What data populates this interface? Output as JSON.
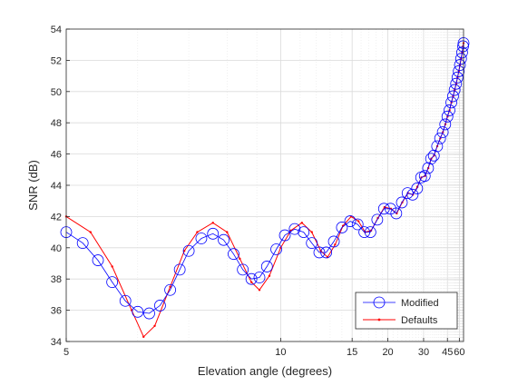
{
  "chart_data": {
    "type": "line",
    "xlabel": "Elevation angle (degrees)",
    "ylabel": "SNR (dB)",
    "x_scale": "reciprocal (tick labels are elevation angle in degrees)",
    "xlim": [
      5,
      68
    ],
    "ylim": [
      34,
      54
    ],
    "x_ticks": [
      5,
      10,
      15,
      20,
      30,
      45,
      60
    ],
    "x_tick_labels": [
      "5",
      "10",
      "15",
      "20",
      "30",
      "45",
      "60"
    ],
    "y_ticks": [
      34,
      36,
      38,
      40,
      42,
      44,
      46,
      48,
      50,
      52,
      54
    ],
    "y_tick_labels": [
      "34",
      "36",
      "38",
      "40",
      "42",
      "44",
      "46",
      "48",
      "50",
      "52",
      "54"
    ],
    "grid": true,
    "minor_grid": true,
    "legend_location": "bottom-right",
    "series": [
      {
        "name": "Modified",
        "color": "#0000ff",
        "marker": "circle",
        "points": [
          [
            5.0,
            41.0
          ],
          [
            5.2,
            40.3
          ],
          [
            5.4,
            39.2
          ],
          [
            5.6,
            37.8
          ],
          [
            5.8,
            36.6
          ],
          [
            6.0,
            35.9
          ],
          [
            6.2,
            35.8
          ],
          [
            6.4,
            36.3
          ],
          [
            6.6,
            37.3
          ],
          [
            6.8,
            38.6
          ],
          [
            7.0,
            39.8
          ],
          [
            7.3,
            40.6
          ],
          [
            7.6,
            40.9
          ],
          [
            7.9,
            40.5
          ],
          [
            8.2,
            39.6
          ],
          [
            8.5,
            38.6
          ],
          [
            8.8,
            38.0
          ],
          [
            9.1,
            38.1
          ],
          [
            9.4,
            38.8
          ],
          [
            9.8,
            39.9
          ],
          [
            10.2,
            40.8
          ],
          [
            10.7,
            41.2
          ],
          [
            11.2,
            41.0
          ],
          [
            11.7,
            40.3
          ],
          [
            12.2,
            39.7
          ],
          [
            12.7,
            39.7
          ],
          [
            13.3,
            40.4
          ],
          [
            14.0,
            41.3
          ],
          [
            14.8,
            41.7
          ],
          [
            15.6,
            41.5
          ],
          [
            16.4,
            41.0
          ],
          [
            17.2,
            41.0
          ],
          [
            18.2,
            41.8
          ],
          [
            19.3,
            42.5
          ],
          [
            20.5,
            42.5
          ],
          [
            21.7,
            42.2
          ],
          [
            23.0,
            42.9
          ],
          [
            24.5,
            43.5
          ],
          [
            26.0,
            43.4
          ],
          [
            27.5,
            43.8
          ],
          [
            29.0,
            44.5
          ],
          [
            30.5,
            44.6
          ],
          [
            32.0,
            45.1
          ],
          [
            33.5,
            45.7
          ],
          [
            35.0,
            45.9
          ],
          [
            37.0,
            46.5
          ],
          [
            39.0,
            47.0
          ],
          [
            41.0,
            47.4
          ],
          [
            43.0,
            47.9
          ],
          [
            45.0,
            48.4
          ],
          [
            47.0,
            48.8
          ],
          [
            49.0,
            49.3
          ],
          [
            51.0,
            49.7
          ],
          [
            53.0,
            50.1
          ],
          [
            55.0,
            50.5
          ],
          [
            57.0,
            50.9
          ],
          [
            59.0,
            51.3
          ],
          [
            61.0,
            51.7
          ],
          [
            63.0,
            52.1
          ],
          [
            65.0,
            52.5
          ],
          [
            67.0,
            52.9
          ],
          [
            68.0,
            53.1
          ]
        ]
      },
      {
        "name": "Defaults",
        "color": "#ff0000",
        "marker": "dot",
        "points": [
          [
            5.0,
            42.0
          ],
          [
            5.3,
            41.0
          ],
          [
            5.6,
            38.8
          ],
          [
            5.9,
            36.0
          ],
          [
            6.1,
            34.3
          ],
          [
            6.3,
            35.0
          ],
          [
            6.6,
            37.5
          ],
          [
            6.9,
            39.8
          ],
          [
            7.2,
            41.0
          ],
          [
            7.6,
            41.6
          ],
          [
            8.0,
            41.0
          ],
          [
            8.4,
            39.3
          ],
          [
            8.8,
            37.8
          ],
          [
            9.1,
            37.3
          ],
          [
            9.5,
            38.2
          ],
          [
            10.0,
            40.0
          ],
          [
            10.5,
            41.1
          ],
          [
            11.1,
            41.6
          ],
          [
            11.7,
            41.0
          ],
          [
            12.3,
            39.8
          ],
          [
            12.8,
            39.4
          ],
          [
            13.4,
            40.2
          ],
          [
            14.1,
            41.4
          ],
          [
            14.9,
            42.0
          ],
          [
            15.7,
            41.7
          ],
          [
            16.5,
            41.0
          ],
          [
            17.3,
            41.1
          ],
          [
            18.3,
            41.9
          ],
          [
            19.4,
            42.6
          ],
          [
            20.6,
            42.5
          ],
          [
            21.8,
            42.2
          ],
          [
            23.1,
            42.9
          ],
          [
            24.6,
            43.5
          ],
          [
            26.1,
            43.4
          ],
          [
            27.6,
            43.9
          ],
          [
            29.1,
            44.5
          ],
          [
            30.6,
            44.6
          ],
          [
            32.1,
            45.1
          ],
          [
            33.6,
            45.7
          ],
          [
            35.1,
            45.9
          ],
          [
            37.1,
            46.5
          ],
          [
            39.1,
            47.0
          ],
          [
            41.1,
            47.4
          ],
          [
            43.1,
            47.9
          ],
          [
            45.1,
            48.4
          ],
          [
            47.1,
            48.8
          ],
          [
            49.1,
            49.3
          ],
          [
            51.1,
            49.7
          ],
          [
            53.1,
            50.1
          ],
          [
            55.1,
            50.5
          ],
          [
            57.1,
            50.9
          ],
          [
            59.1,
            51.3
          ],
          [
            61.1,
            51.7
          ],
          [
            63.1,
            52.1
          ],
          [
            65.1,
            52.5
          ],
          [
            67.1,
            52.9
          ],
          [
            68.0,
            53.1
          ]
        ]
      }
    ]
  }
}
